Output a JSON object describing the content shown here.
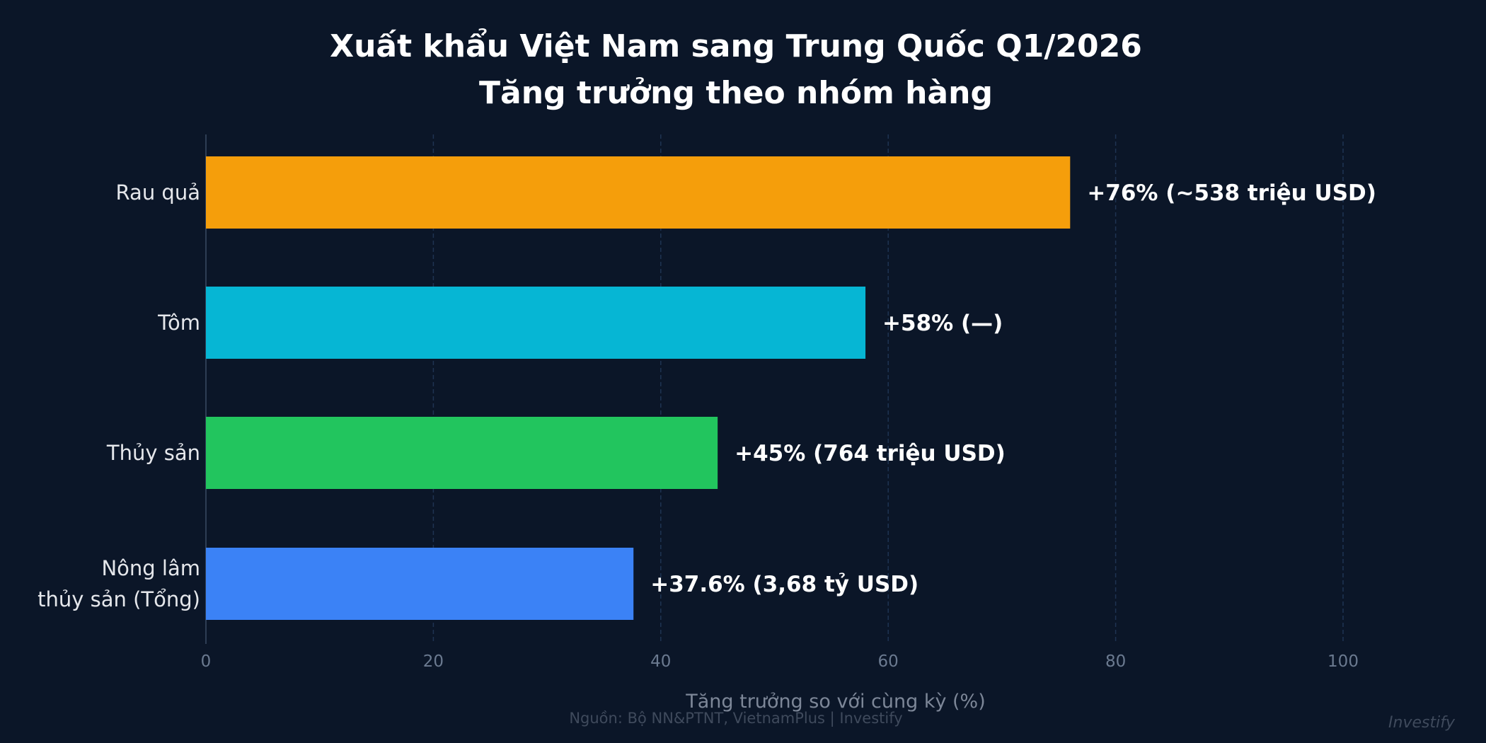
{
  "chart_data": {
    "type": "bar",
    "orientation": "horizontal",
    "title": "Xuất khẩu Việt Nam sang Trung Quốc Q1/2026",
    "subtitle": "Tăng trưởng theo nhóm hàng",
    "categories": [
      [
        "Rau quả"
      ],
      [
        "Tôm"
      ],
      [
        "Thủy sản"
      ],
      [
        "Nông lâm",
        "thủy sản (Tổng)"
      ]
    ],
    "values": [
      76,
      58,
      45,
      37.6
    ],
    "value_labels": [
      "+76%  (~538 triệu USD)",
      "+58%  (—)",
      "+45%  (764 triệu USD)",
      "+37.6%  (3,68 tỷ USD)"
    ],
    "colors": [
      "#f59e0b",
      "#06b6d4",
      "#22c55e",
      "#3b82f6"
    ],
    "xlabel": "Tăng trưởng so với cùng kỳ (%)",
    "ylabel": "",
    "xlim": [
      0,
      100
    ],
    "xticks": [
      "0",
      "20",
      "40",
      "60",
      "80",
      "100"
    ],
    "grid": "vertical dashed",
    "legend": "none"
  },
  "footer": {
    "source": "Nguồn: Bộ NN&PTNT, VietnamPlus  |  Investify",
    "watermark": "Investify"
  },
  "colors": {
    "background": "#0b1628",
    "grid": "#1e3352"
  }
}
